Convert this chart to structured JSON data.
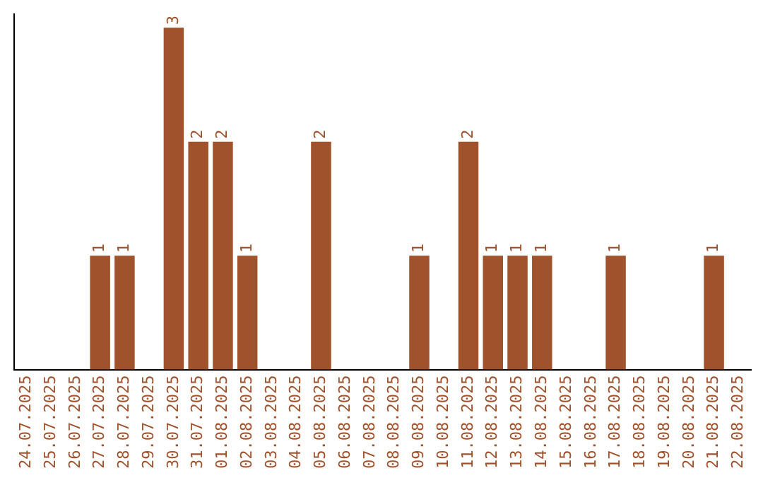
{
  "chart_data": {
    "type": "bar",
    "categories": [
      "24.07.2025",
      "25.07.2025",
      "26.07.2025",
      "27.07.2025",
      "28.07.2025",
      "29.07.2025",
      "30.07.2025",
      "31.07.2025",
      "01.08.2025",
      "02.08.2025",
      "03.08.2025",
      "04.08.2025",
      "05.08.2025",
      "06.08.2025",
      "07.08.2025",
      "08.08.2025",
      "09.08.2025",
      "10.08.2025",
      "11.08.2025",
      "12.08.2025",
      "13.08.2025",
      "14.08.2025",
      "15.08.2025",
      "16.08.2025",
      "17.08.2025",
      "18.08.2025",
      "19.08.2025",
      "20.08.2025",
      "21.08.2025",
      "22.08.2025"
    ],
    "values": [
      0,
      0,
      0,
      1,
      1,
      0,
      3,
      2,
      2,
      1,
      0,
      0,
      2,
      0,
      0,
      0,
      1,
      0,
      2,
      1,
      1,
      1,
      0,
      0,
      1,
      0,
      0,
      0,
      1,
      0
    ],
    "value_labels": [
      null,
      null,
      null,
      "1",
      "1",
      null,
      "3",
      "2",
      "2",
      "1",
      null,
      null,
      "2",
      null,
      null,
      null,
      "1",
      null,
      "2",
      "1",
      "1",
      "1",
      null,
      null,
      "1",
      null,
      null,
      null,
      "1",
      null
    ],
    "color": "#a0522d",
    "ylim": [
      0,
      3.12
    ],
    "tick_labels": "x",
    "grid": false,
    "legend": false
  }
}
